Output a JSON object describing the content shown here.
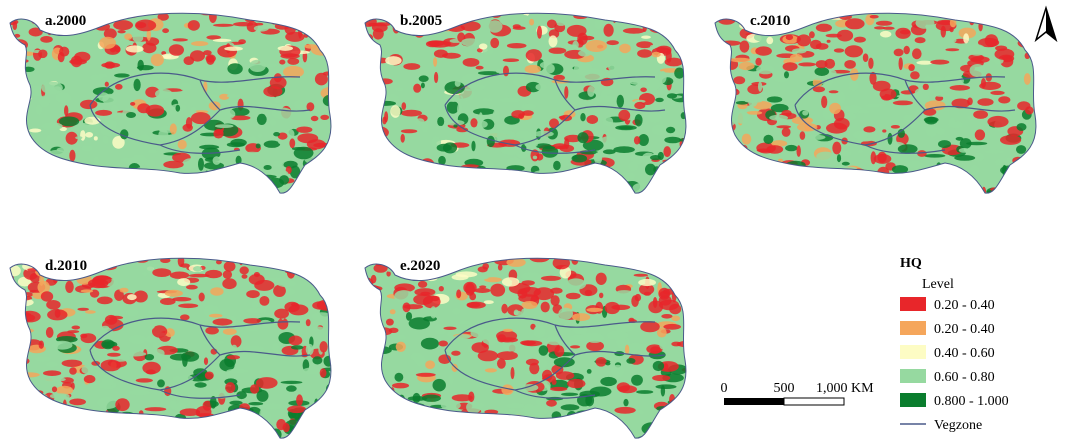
{
  "panels": [
    {
      "label": "a.2000"
    },
    {
      "label": "b.2005"
    },
    {
      "label": "c.2010"
    },
    {
      "label": "d.2010"
    },
    {
      "label": "e.2020"
    }
  ],
  "legend": {
    "title": "HQ",
    "subtitle": "Level",
    "items": [
      {
        "label": "0.20 - 0.40",
        "color": "#e8262a"
      },
      {
        "label": "0.20 - 0.40",
        "color": "#f5a65b"
      },
      {
        "label": "0.40 - 0.60",
        "color": "#fdfcc4"
      },
      {
        "label": "0.60 - 0.80",
        "color": "#96d9a0"
      },
      {
        "label": "0.800 - 1.000",
        "color": "#0a7d2e"
      }
    ],
    "line_label": "Vegzone"
  },
  "scale_bar": {
    "labels": [
      "0",
      "500",
      "1,000 KM"
    ]
  }
}
